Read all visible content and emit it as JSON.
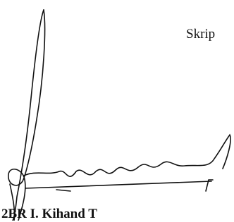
{
  "header": {
    "text": "Skrip"
  },
  "footer": {
    "text": "2BR I. Kihand T"
  }
}
